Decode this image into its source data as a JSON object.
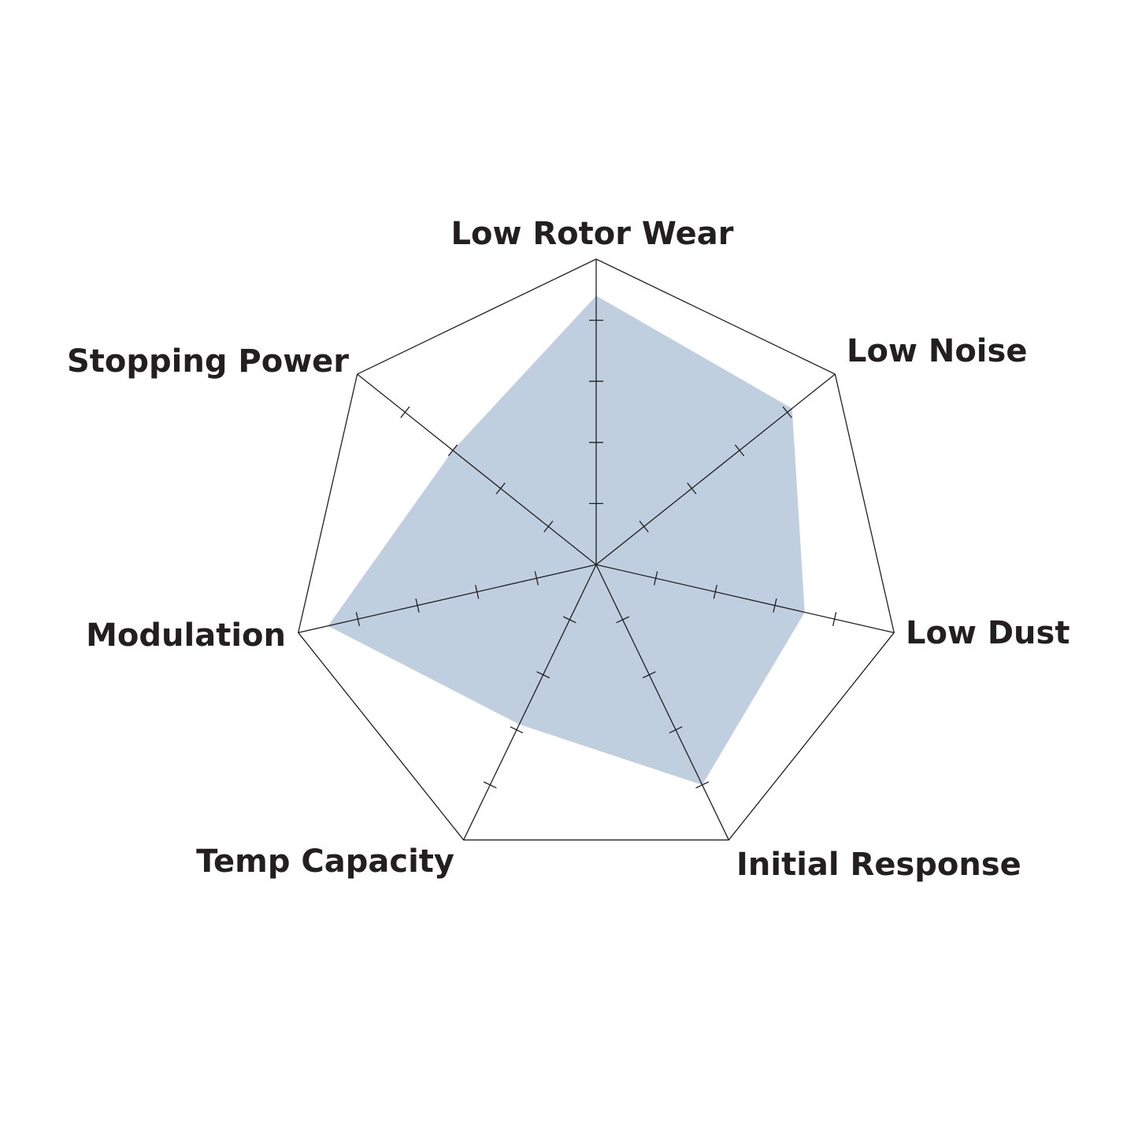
{
  "chart_data": {
    "type": "radar",
    "title": "",
    "axes": [
      "Low Rotor Wear",
      "Low Noise",
      "Low Dust",
      "Initial Response",
      "Temp Capacity",
      "Modulation",
      "Stopping Power"
    ],
    "values": [
      4.4,
      4.1,
      3.5,
      4.0,
      2.9,
      4.5,
      3.0
    ],
    "range": [
      0,
      5
    ],
    "tick_count": 4,
    "colors": {
      "fill": "#bfcfe0",
      "grid": "#231f20",
      "text": "#231f20"
    }
  }
}
